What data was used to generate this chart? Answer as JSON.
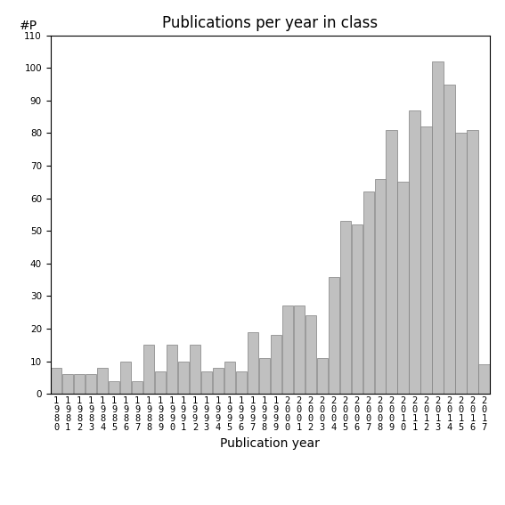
{
  "title": "Publications per year in class",
  "xlabel": "Publication year",
  "ylabel": "#P",
  "years": [
    "1980",
    "1981",
    "1982",
    "1983",
    "1984",
    "1985",
    "1986",
    "1987",
    "1988",
    "1989",
    "1990",
    "1991",
    "1992",
    "1993",
    "1994",
    "1995",
    "1996",
    "1997",
    "1998",
    "1999",
    "2000",
    "2001",
    "2002",
    "2003",
    "2004",
    "2005",
    "2006",
    "2007",
    "2008",
    "2009",
    "2010",
    "2011",
    "2012",
    "2013",
    "2014",
    "2015",
    "2016",
    "2017"
  ],
  "values": [
    8,
    6,
    6,
    6,
    8,
    4,
    10,
    4,
    15,
    7,
    15,
    10,
    15,
    7,
    8,
    10,
    7,
    19,
    11,
    18,
    27,
    27,
    24,
    11,
    36,
    53,
    52,
    62,
    66,
    81,
    65,
    87,
    82,
    102,
    95,
    80,
    81,
    9
  ],
  "bar_color": "#c0c0c0",
  "bar_edge_color": "#808080",
  "ylim": [
    0,
    110
  ],
  "yticks": [
    0,
    10,
    20,
    30,
    40,
    50,
    60,
    70,
    80,
    90,
    100,
    110
  ],
  "bg_color": "#ffffff",
  "title_fontsize": 12,
  "axis_label_fontsize": 10,
  "tick_fontsize": 7.5,
  "bar_width": 0.95
}
